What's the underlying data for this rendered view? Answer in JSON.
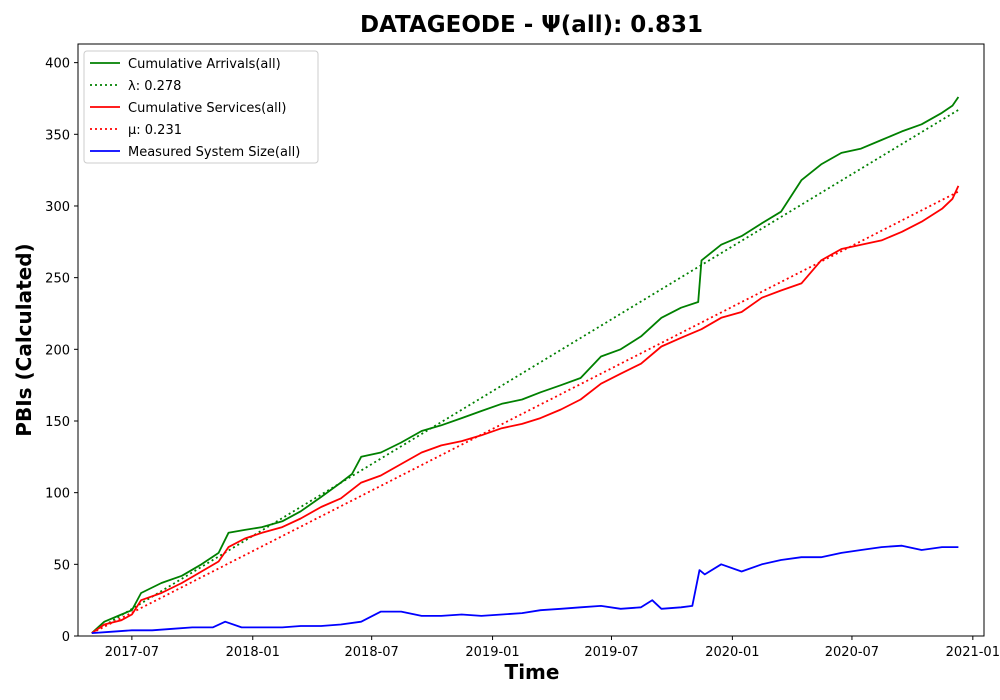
{
  "chart_data": {
    "type": "line",
    "title": "DATAGEODE -  Ψ(all): 0.831",
    "xlabel": "Time",
    "ylabel": "PBIs (Calculated)",
    "xlim": [
      "2017-04-10",
      "2021-01-18"
    ],
    "ylim": [
      0,
      413
    ],
    "x_ticks": [
      "2017-07",
      "2018-01",
      "2018-07",
      "2019-01",
      "2019-07",
      "2020-01",
      "2020-07",
      "2021-01"
    ],
    "y_ticks": [
      0,
      50,
      100,
      150,
      200,
      250,
      300,
      350,
      400
    ],
    "grid": false,
    "legend_position": "upper-left",
    "colors": {
      "arrivals": "#008000",
      "services": "#ff0000",
      "system_size": "#0000ff"
    },
    "series": [
      {
        "name": "Cumulative Arrivals(all)",
        "style": "solid",
        "color": "#008000",
        "x": [
          "2017-05-01",
          "2017-05-20",
          "2017-06-15",
          "2017-07-01",
          "2017-07-15",
          "2017-08-15",
          "2017-09-15",
          "2017-10-15",
          "2017-11-10",
          "2017-11-25",
          "2017-12-20",
          "2018-01-15",
          "2018-02-15",
          "2018-03-15",
          "2018-04-15",
          "2018-05-15",
          "2018-06-01",
          "2018-06-15",
          "2018-07-15",
          "2018-08-15",
          "2018-09-15",
          "2018-10-15",
          "2018-11-15",
          "2018-12-15",
          "2019-01-15",
          "2019-02-15",
          "2019-03-15",
          "2019-04-15",
          "2019-05-15",
          "2019-06-15",
          "2019-07-15",
          "2019-08-15",
          "2019-09-15",
          "2019-10-15",
          "2019-11-10",
          "2019-11-15",
          "2019-12-15",
          "2020-01-15",
          "2020-02-15",
          "2020-03-15",
          "2020-04-15",
          "2020-05-15",
          "2020-06-15",
          "2020-07-15",
          "2020-08-15",
          "2020-09-15",
          "2020-10-15",
          "2020-11-15",
          "2020-12-01",
          "2020-12-10"
        ],
        "values": [
          2,
          10,
          15,
          18,
          30,
          37,
          42,
          50,
          58,
          72,
          74,
          76,
          80,
          87,
          97,
          107,
          113,
          125,
          128,
          135,
          143,
          147,
          152,
          157,
          162,
          165,
          170,
          175,
          180,
          195,
          200,
          209,
          222,
          229,
          233,
          262,
          273,
          279,
          288,
          296,
          318,
          329,
          337,
          340,
          346,
          352,
          357,
          365,
          370,
          376
        ]
      },
      {
        "name": "λ: 0.278",
        "style": "dotted",
        "color": "#008000",
        "x": [
          "2017-05-01",
          "2020-12-10"
        ],
        "values": [
          2,
          367
        ]
      },
      {
        "name": "Cumulative Services(all)",
        "style": "solid",
        "color": "#ff0000",
        "x": [
          "2017-05-01",
          "2017-05-20",
          "2017-06-15",
          "2017-07-01",
          "2017-07-15",
          "2017-08-15",
          "2017-09-15",
          "2017-10-15",
          "2017-11-10",
          "2017-11-25",
          "2017-12-20",
          "2018-01-15",
          "2018-02-15",
          "2018-03-15",
          "2018-04-15",
          "2018-05-15",
          "2018-06-15",
          "2018-07-15",
          "2018-08-15",
          "2018-09-15",
          "2018-10-15",
          "2018-11-15",
          "2018-12-15",
          "2019-01-15",
          "2019-02-15",
          "2019-03-15",
          "2019-04-15",
          "2019-05-15",
          "2019-06-15",
          "2019-07-15",
          "2019-08-15",
          "2019-09-15",
          "2019-10-15",
          "2019-11-15",
          "2019-12-15",
          "2020-01-15",
          "2020-02-15",
          "2020-03-15",
          "2020-04-15",
          "2020-05-15",
          "2020-06-15",
          "2020-07-15",
          "2020-08-15",
          "2020-09-15",
          "2020-10-15",
          "2020-11-15",
          "2020-12-01",
          "2020-12-10"
        ],
        "values": [
          2,
          8,
          11,
          15,
          25,
          30,
          37,
          45,
          52,
          62,
          68,
          72,
          76,
          82,
          90,
          96,
          107,
          112,
          120,
          128,
          133,
          136,
          140,
          145,
          148,
          152,
          158,
          165,
          176,
          183,
          190,
          202,
          208,
          214,
          222,
          226,
          236,
          241,
          246,
          262,
          270,
          273,
          276,
          282,
          289,
          298,
          305,
          314
        ]
      },
      {
        "name": "μ: 0.231",
        "style": "dotted",
        "color": "#ff0000",
        "x": [
          "2017-05-01",
          "2020-12-10"
        ],
        "values": [
          2,
          310
        ]
      },
      {
        "name": "Measured System Size(all)",
        "style": "solid",
        "color": "#0000ff",
        "x": [
          "2017-05-01",
          "2017-06-01",
          "2017-07-01",
          "2017-08-01",
          "2017-09-01",
          "2017-10-01",
          "2017-11-01",
          "2017-11-20",
          "2017-12-15",
          "2018-01-15",
          "2018-02-15",
          "2018-03-15",
          "2018-04-15",
          "2018-05-15",
          "2018-06-15",
          "2018-07-15",
          "2018-08-15",
          "2018-09-15",
          "2018-10-15",
          "2018-11-15",
          "2018-12-15",
          "2019-01-15",
          "2019-02-15",
          "2019-03-15",
          "2019-04-15",
          "2019-05-15",
          "2019-06-15",
          "2019-07-15",
          "2019-08-15",
          "2019-09-01",
          "2019-09-15",
          "2019-10-15",
          "2019-11-01",
          "2019-11-12",
          "2019-11-20",
          "2019-12-15",
          "2020-01-15",
          "2020-02-15",
          "2020-03-15",
          "2020-04-15",
          "2020-05-15",
          "2020-06-15",
          "2020-07-15",
          "2020-08-15",
          "2020-09-15",
          "2020-10-15",
          "2020-11-15",
          "2020-12-10"
        ],
        "values": [
          2,
          3,
          4,
          4,
          5,
          6,
          6,
          10,
          6,
          6,
          6,
          7,
          7,
          8,
          10,
          17,
          17,
          14,
          14,
          15,
          14,
          15,
          16,
          18,
          19,
          20,
          21,
          19,
          20,
          25,
          19,
          20,
          21,
          46,
          43,
          50,
          45,
          50,
          53,
          55,
          55,
          58,
          60,
          62,
          63,
          60,
          62,
          62
        ]
      }
    ]
  }
}
